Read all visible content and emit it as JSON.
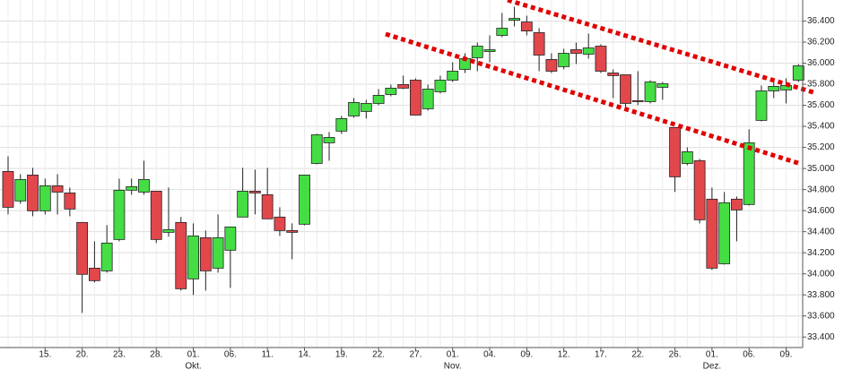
{
  "chart_data": {
    "type": "candlestick",
    "categories": [
      null,
      null,
      null,
      "15.",
      null,
      null,
      "20.",
      null,
      null,
      "23.",
      null,
      null,
      "28.",
      null,
      null,
      "01.",
      null,
      null,
      "06.",
      null,
      null,
      "11.",
      null,
      null,
      "14.",
      null,
      null,
      "19.",
      null,
      null,
      "22.",
      null,
      null,
      "27.",
      null,
      null,
      "01.",
      null,
      null,
      "04.",
      null,
      null,
      "09.",
      null,
      null,
      "12.",
      null,
      null,
      "17.",
      null,
      null,
      "22.",
      null,
      null,
      "26.",
      null,
      null,
      "01.",
      null,
      null,
      "06.",
      null,
      null,
      "09.",
      null
    ],
    "month_categories": [
      null,
      null,
      null,
      null,
      null,
      null,
      null,
      null,
      null,
      null,
      null,
      null,
      null,
      null,
      null,
      "Okt.",
      null,
      null,
      null,
      null,
      null,
      null,
      null,
      null,
      null,
      null,
      null,
      null,
      null,
      null,
      null,
      null,
      null,
      null,
      null,
      null,
      "Nov.",
      null,
      null,
      null,
      null,
      null,
      null,
      null,
      null,
      null,
      null,
      null,
      null,
      null,
      null,
      null,
      null,
      null,
      null,
      null,
      null,
      "Dez.",
      null,
      null,
      null,
      null,
      null,
      null,
      null
    ],
    "open": [
      34972,
      34692,
      34938,
      34598,
      34836,
      34768,
      34488,
      34054,
      34028,
      34326,
      34794,
      34776,
      34785,
      34394,
      34488,
      33952,
      34343,
      34054,
      34224,
      34539,
      34785,
      34751,
      34539,
      34411,
      34471,
      35048,
      35244,
      35355,
      35499,
      35542,
      35618,
      35703,
      35797,
      35839,
      35567,
      35729,
      35839,
      35941,
      36052,
      36111,
      36264,
      36408,
      36391,
      36290,
      36035,
      35967,
      36128,
      36086,
      36162,
      35907,
      35890,
      35644,
      35635,
      35771,
      35389,
      35048,
      35074,
      34709,
      34096,
      34709,
      34658,
      35457,
      35737,
      35746,
      35839
    ],
    "high": [
      35116,
      34946,
      35006,
      34904,
      34946,
      34819,
      34488,
      34309,
      34462,
      34904,
      34904,
      35074,
      34785,
      34819,
      34539,
      34479,
      34411,
      34564,
      34445,
      35006,
      34989,
      35006,
      34632,
      34479,
      34938,
      35329,
      35346,
      35499,
      35669,
      35652,
      35754,
      35797,
      35882,
      35856,
      35797,
      35882,
      36009,
      36094,
      36196,
      36264,
      36477,
      36536,
      36451,
      36332,
      36094,
      36137,
      36196,
      36281,
      36179,
      35941,
      35890,
      35924,
      35839,
      35822,
      35389,
      35201,
      35091,
      34819,
      34777,
      34734,
      35372,
      35788,
      35822,
      35856,
      35992
    ],
    "low": [
      34564,
      34666,
      34547,
      34564,
      34564,
      34547,
      33629,
      33918,
      34011,
      34309,
      34751,
      34751,
      34292,
      34352,
      33841,
      33799,
      33841,
      34011,
      33867,
      34539,
      34564,
      34522,
      34360,
      34139,
      34462,
      35040,
      35074,
      35329,
      35482,
      35474,
      35601,
      35686,
      35754,
      35507,
      35550,
      35712,
      35822,
      35907,
      35924,
      36009,
      36247,
      36349,
      36264,
      35924,
      35907,
      35941,
      35992,
      36043,
      35907,
      35669,
      35584,
      35601,
      35618,
      35652,
      34777,
      35031,
      34479,
      34037,
      34088,
      34309,
      34649,
      35448,
      35669,
      35618,
      35822
    ],
    "close": [
      34632,
      34896,
      34598,
      34836,
      34776,
      34615,
      33995,
      33935,
      34292,
      34794,
      34828,
      34896,
      34326,
      34420,
      33858,
      34360,
      34028,
      34343,
      34445,
      34785,
      34768,
      34522,
      34411,
      34394,
      34938,
      35320,
      35295,
      35474,
      35627,
      35618,
      35695,
      35763,
      35763,
      35507,
      35754,
      35839,
      35924,
      36043,
      36162,
      36128,
      36332,
      36425,
      36306,
      36077,
      35924,
      36094,
      36094,
      36145,
      35924,
      35882,
      35618,
      35635,
      35822,
      35805,
      34921,
      35159,
      34513,
      34054,
      34675,
      34607,
      35244,
      35737,
      35780,
      35788,
      35975
    ],
    "up_color": "#44dd44",
    "down_color": "#e2474b",
    "ylim": [
      33300,
      36600
    ],
    "yticks": [
      {
        "value": 33400,
        "label": "33.400"
      },
      {
        "value": 33600,
        "label": "33.600"
      },
      {
        "value": 33800,
        "label": "33.800"
      },
      {
        "value": 34000,
        "label": "34.000"
      },
      {
        "value": 34200,
        "label": "34.200"
      },
      {
        "value": 34400,
        "label": "34.400"
      },
      {
        "value": 34600,
        "label": "34.600"
      },
      {
        "value": 34800,
        "label": "34.800"
      },
      {
        "value": 35000,
        "label": "35.000"
      },
      {
        "value": 35200,
        "label": "35.200"
      },
      {
        "value": 35400,
        "label": "35.400"
      },
      {
        "value": 35600,
        "label": "35.600"
      },
      {
        "value": 35800,
        "label": "35.800"
      },
      {
        "value": 36000,
        "label": "36.000"
      },
      {
        "value": 36200,
        "label": "36.200"
      },
      {
        "value": 36400,
        "label": "36.400"
      }
    ],
    "grid": true
  }
}
